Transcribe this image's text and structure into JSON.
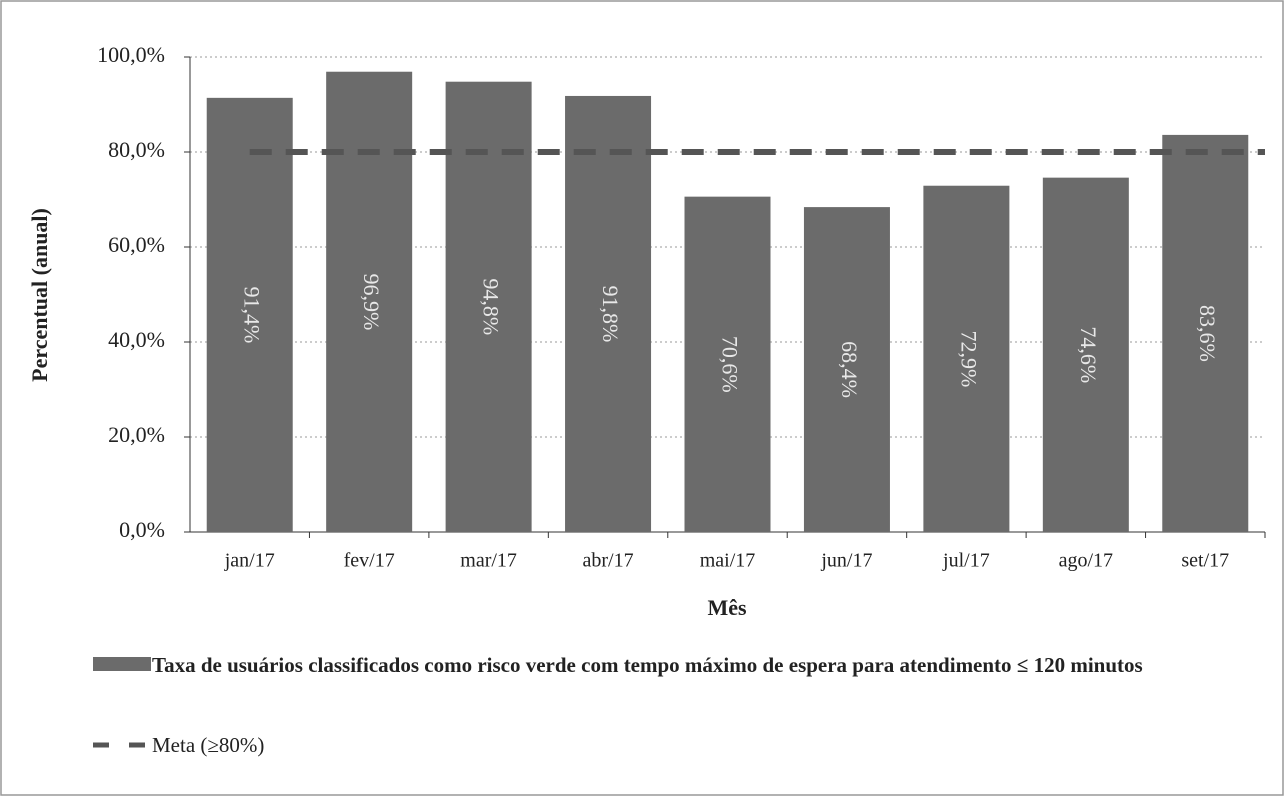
{
  "chart_data": {
    "type": "bar",
    "y_label": "Percentual (anual)",
    "x_label": "Mês",
    "categories": [
      "jan/17",
      "fev/17",
      "mar/17",
      "abr/17",
      "mai/17",
      "jun/17",
      "jul/17",
      "ago/17",
      "set/17"
    ],
    "series": [
      {
        "name": "Taxa de usuários classificados como risco verde com tempo máximo de espera para atendimento ≤ 120 minutos",
        "color": "#6b6b6b",
        "values": [
          91.4,
          96.9,
          94.8,
          91.8,
          70.6,
          68.4,
          72.9,
          74.6,
          83.6
        ],
        "value_labels": [
          "91,4%",
          "96,9%",
          "94,8%",
          "91,8%",
          "70,6%",
          "68,4%",
          "72,9%",
          "74,6%",
          "83,6%"
        ]
      }
    ],
    "target": {
      "name": "Meta (≥80%)",
      "value": 80,
      "color": "#555555"
    },
    "ylim": [
      0,
      100
    ],
    "yticks": [
      {
        "value": 0,
        "label": "0,0%"
      },
      {
        "value": 20,
        "label": "20,0%"
      },
      {
        "value": 40,
        "label": "40,0%"
      },
      {
        "value": 60,
        "label": "60,0%"
      },
      {
        "value": 80,
        "label": "80,0%"
      },
      {
        "value": 100,
        "label": "100,0%"
      }
    ],
    "grid": true
  }
}
